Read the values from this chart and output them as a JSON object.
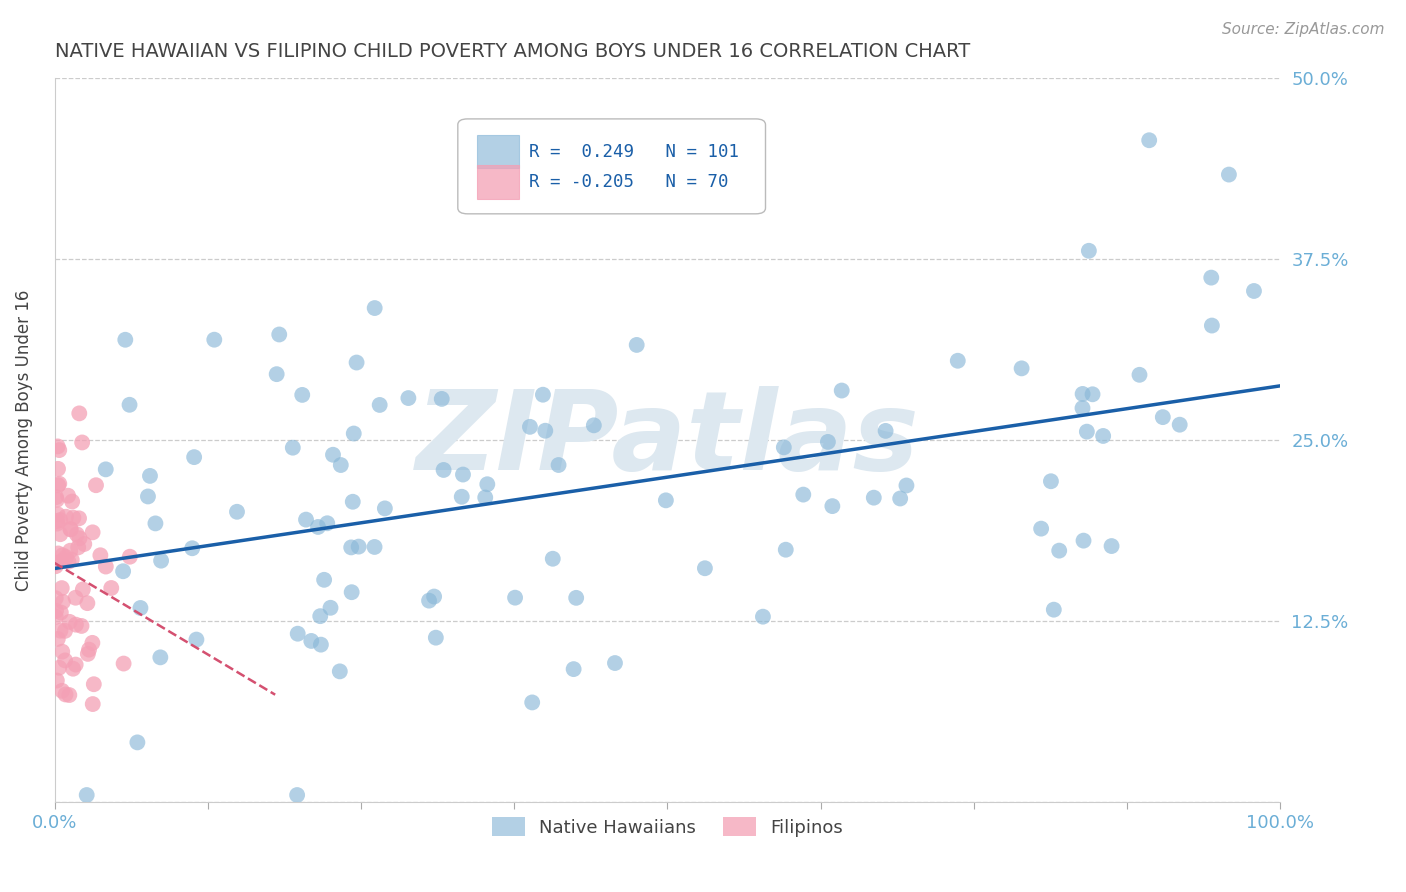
{
  "title": "NATIVE HAWAIIAN VS FILIPINO CHILD POVERTY AMONG BOYS UNDER 16 CORRELATION CHART",
  "source": "Source: ZipAtlas.com",
  "ylabel": "Child Poverty Among Boys Under 16",
  "watermark": "ZIPatlas",
  "xlim": [
    0.0,
    1.0
  ],
  "ylim": [
    0.0,
    0.5
  ],
  "xticks": [
    0.0,
    0.125,
    0.25,
    0.375,
    0.5,
    0.625,
    0.75,
    0.875,
    1.0
  ],
  "xticklabels": [
    "0.0%",
    "",
    "",
    "",
    "",
    "",
    "",
    "",
    "100.0%"
  ],
  "yticks": [
    0.0,
    0.125,
    0.25,
    0.375,
    0.5
  ],
  "yticklabels": [
    "",
    "12.5%",
    "25.0%",
    "37.5%",
    "50.0%"
  ],
  "legend_label1": "Native Hawaiians",
  "legend_label2": "Filipinos",
  "blue_color": "#8ab8d8",
  "blue_line_color": "#1a5fa8",
  "pink_color": "#f4a0b5",
  "pink_line_color": "#d45070",
  "background_color": "#ffffff",
  "grid_color": "#cccccc",
  "title_color": "#444444",
  "axis_tick_color": "#6baed6",
  "watermark_color": "#dde8f0",
  "legend_text_color": "#1a5fa8",
  "blue_seed": 12,
  "pink_seed": 99,
  "blue_intercept": 0.17,
  "blue_slope_line": 0.08,
  "pink_intercept": 0.168,
  "pink_slope_line": -0.9
}
